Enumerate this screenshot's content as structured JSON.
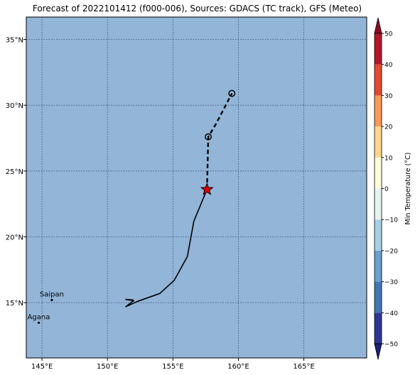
{
  "title": "Forecast of 2022101412 (f000-006), Sources: GDACS (TC track), GFS (Meteo)",
  "map": {
    "ocean_color": "#92b5d8",
    "extent": {
      "lon": [
        143.8,
        169.8
      ],
      "lat": [
        10.8,
        36.7
      ]
    },
    "lat_ticks": [
      {
        "value": 35,
        "label": "35°N"
      },
      {
        "value": 30,
        "label": "30°N"
      },
      {
        "value": 25,
        "label": "25°N"
      },
      {
        "value": 20,
        "label": "20°N"
      },
      {
        "value": 15,
        "label": "15°N"
      }
    ],
    "lon_ticks": [
      {
        "value": 145,
        "label": "145°E"
      },
      {
        "value": 150,
        "label": "150°E"
      },
      {
        "value": 155,
        "label": "155°E"
      },
      {
        "value": 160,
        "label": "160°E"
      },
      {
        "value": 165,
        "label": "165°E"
      }
    ],
    "places": [
      {
        "name": "Saipan",
        "lon": 145.75,
        "lat": 15.2
      },
      {
        "name": "Agana",
        "lon": 144.75,
        "lat": 13.48
      }
    ],
    "past_track": [
      [
        152.0,
        15.2
      ],
      [
        151.4,
        15.25
      ],
      [
        152.0,
        15.15
      ],
      [
        151.4,
        14.7
      ],
      [
        152.3,
        15.1
      ],
      [
        154.0,
        15.7
      ],
      [
        155.1,
        16.7
      ],
      [
        156.1,
        18.5
      ],
      [
        156.6,
        21.2
      ],
      [
        157.6,
        23.6
      ]
    ],
    "forecast_track": [
      [
        157.6,
        23.6
      ],
      [
        157.7,
        27.6
      ],
      [
        158.3,
        28.6
      ],
      [
        159.5,
        30.9
      ]
    ],
    "current_position": {
      "lon": 157.6,
      "lat": 23.6,
      "color": "#dd0000"
    },
    "forecast_points": [
      {
        "lon": 157.7,
        "lat": 27.6
      },
      {
        "lon": 159.5,
        "lat": 30.9
      }
    ]
  },
  "colorbar": {
    "label": "Min Temperature (°C)",
    "ticks": [
      {
        "value": 50,
        "label": "50"
      },
      {
        "value": 40,
        "label": "40"
      },
      {
        "value": 30,
        "label": "30"
      },
      {
        "value": 20,
        "label": "20"
      },
      {
        "value": 10,
        "label": "10"
      },
      {
        "value": 0,
        "label": "0"
      },
      {
        "value": -10,
        "label": "−10"
      },
      {
        "value": -20,
        "label": "−20"
      },
      {
        "value": -30,
        "label": "−30"
      },
      {
        "value": -40,
        "label": "−40"
      },
      {
        "value": -50,
        "label": "−50"
      }
    ],
    "bands": [
      {
        "from": -50,
        "to": -40,
        "color": "#303593"
      },
      {
        "from": -40,
        "to": -30,
        "color": "#4575b4"
      },
      {
        "from": -30,
        "to": -20,
        "color": "#6a9fcb"
      },
      {
        "from": -20,
        "to": -10,
        "color": "#a6d1e4"
      },
      {
        "from": -10,
        "to": 0,
        "color": "#e6f4f0"
      },
      {
        "from": 0,
        "to": 10,
        "color": "#fffddb"
      },
      {
        "from": 10,
        "to": 20,
        "color": "#fdd690"
      },
      {
        "from": 20,
        "to": 30,
        "color": "#f99a5b"
      },
      {
        "from": 30,
        "to": 40,
        "color": "#e34a33"
      },
      {
        "from": 40,
        "to": 50,
        "color": "#b2182b"
      }
    ],
    "extend_low_color": "#1f1f7a",
    "extend_high_color": "#8b0a26"
  }
}
